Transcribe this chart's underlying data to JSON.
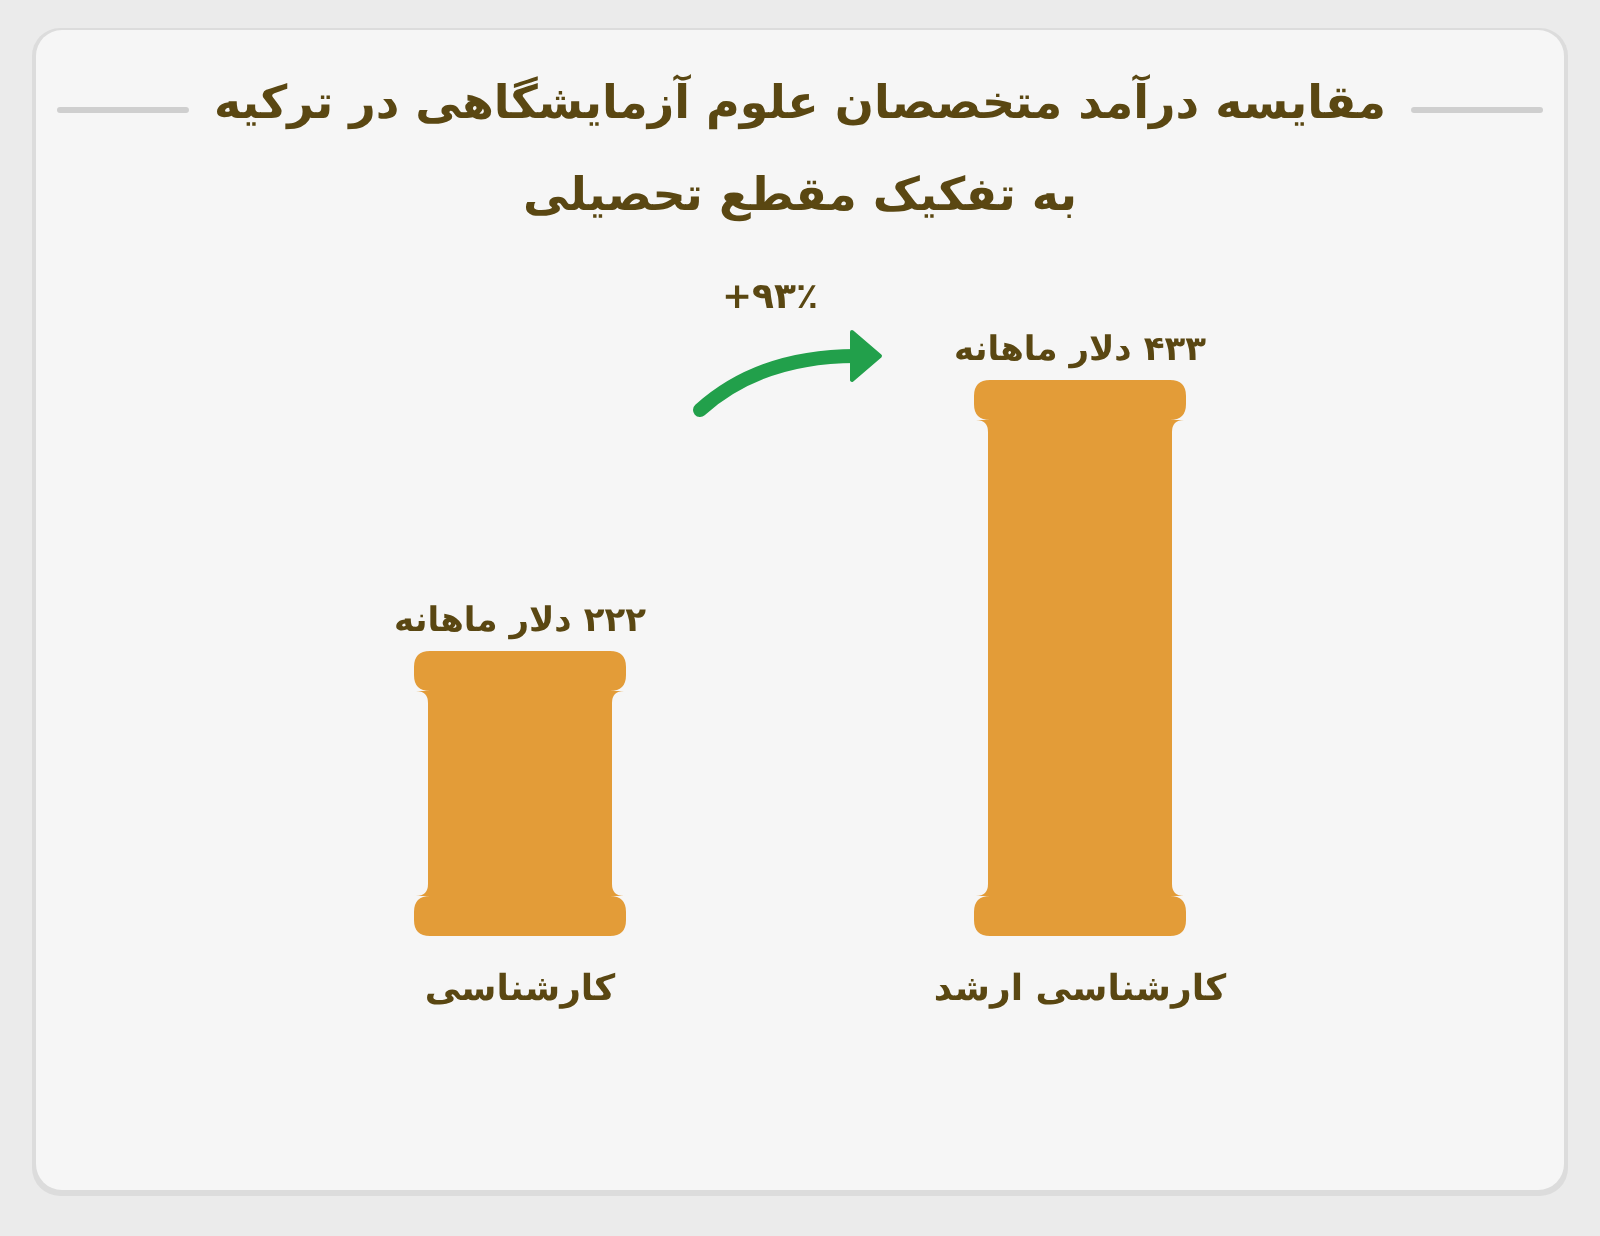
{
  "chart_data": {
    "type": "bar",
    "title": "مقایسه درآمد متخصصان علوم آزمایشگاهی در ترکیه",
    "subtitle": "به تفکیک مقطع تحصیلی",
    "categories": [
      "کارشناسی",
      "کارشناسی ارشد"
    ],
    "values": [
      222,
      433
    ],
    "value_labels": [
      "۲۲۲ دلار ماهانه",
      "۴۳۳ دلار ماهانه"
    ],
    "color": "#e39c38",
    "annotations": [
      "+۹۳٪"
    ]
  }
}
